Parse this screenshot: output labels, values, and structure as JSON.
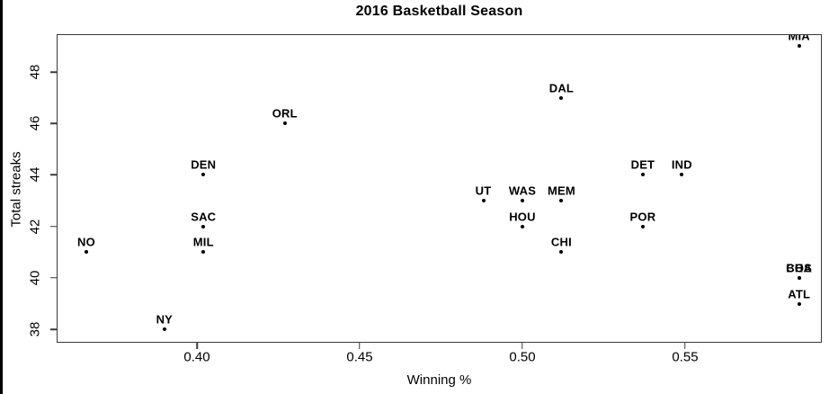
{
  "title": "2016 Basketball Season",
  "colors": {
    "foreground": "#000000",
    "background": "#ffffff",
    "box_line": "#3a3a3a"
  },
  "chart_data": {
    "type": "scatter",
    "title": "2016 Basketball Season",
    "xlabel": "Winning %",
    "ylabel": "Total streaks",
    "xlim": [
      0.3569,
      0.592
    ],
    "ylim": [
      37.48,
      49.47
    ],
    "grid": false,
    "legend": "none",
    "marker": "filled-dot",
    "x_ticks": [
      {
        "value": 0.4,
        "label": "0.40"
      },
      {
        "value": 0.45,
        "label": "0.45"
      },
      {
        "value": 0.5,
        "label": "0.50"
      },
      {
        "value": 0.55,
        "label": "0.55"
      }
    ],
    "y_ticks": [
      {
        "value": 38,
        "label": "38"
      },
      {
        "value": 40,
        "label": "40"
      },
      {
        "value": 42,
        "label": "42"
      },
      {
        "value": 44,
        "label": "44"
      },
      {
        "value": 46,
        "label": "46"
      },
      {
        "value": 48,
        "label": "48"
      }
    ],
    "points": [
      {
        "label": "NO",
        "x": 0.366,
        "y": 41
      },
      {
        "label": "NY",
        "x": 0.39,
        "y": 38
      },
      {
        "label": "DEN",
        "x": 0.402,
        "y": 44
      },
      {
        "label": "SAC",
        "x": 0.402,
        "y": 42
      },
      {
        "label": "MIL",
        "x": 0.402,
        "y": 41
      },
      {
        "label": "ORL",
        "x": 0.427,
        "y": 46
      },
      {
        "label": "UT",
        "x": 0.488,
        "y": 43
      },
      {
        "label": "WAS",
        "x": 0.5,
        "y": 43
      },
      {
        "label": "HOU",
        "x": 0.5,
        "y": 42
      },
      {
        "label": "DAL",
        "x": 0.512,
        "y": 47
      },
      {
        "label": "MEM",
        "x": 0.512,
        "y": 43
      },
      {
        "label": "CHI",
        "x": 0.512,
        "y": 41
      },
      {
        "label": "DET",
        "x": 0.537,
        "y": 44
      },
      {
        "label": "POR",
        "x": 0.537,
        "y": 42
      },
      {
        "label": "IND",
        "x": 0.549,
        "y": 44
      },
      {
        "label": "MIA",
        "x": 0.585,
        "y": 49
      },
      {
        "label": "BOS",
        "x": 0.585,
        "y": 40
      },
      {
        "label": "CHA",
        "x": 0.585,
        "y": 40
      },
      {
        "label": "ATL",
        "x": 0.585,
        "y": 39
      }
    ]
  }
}
